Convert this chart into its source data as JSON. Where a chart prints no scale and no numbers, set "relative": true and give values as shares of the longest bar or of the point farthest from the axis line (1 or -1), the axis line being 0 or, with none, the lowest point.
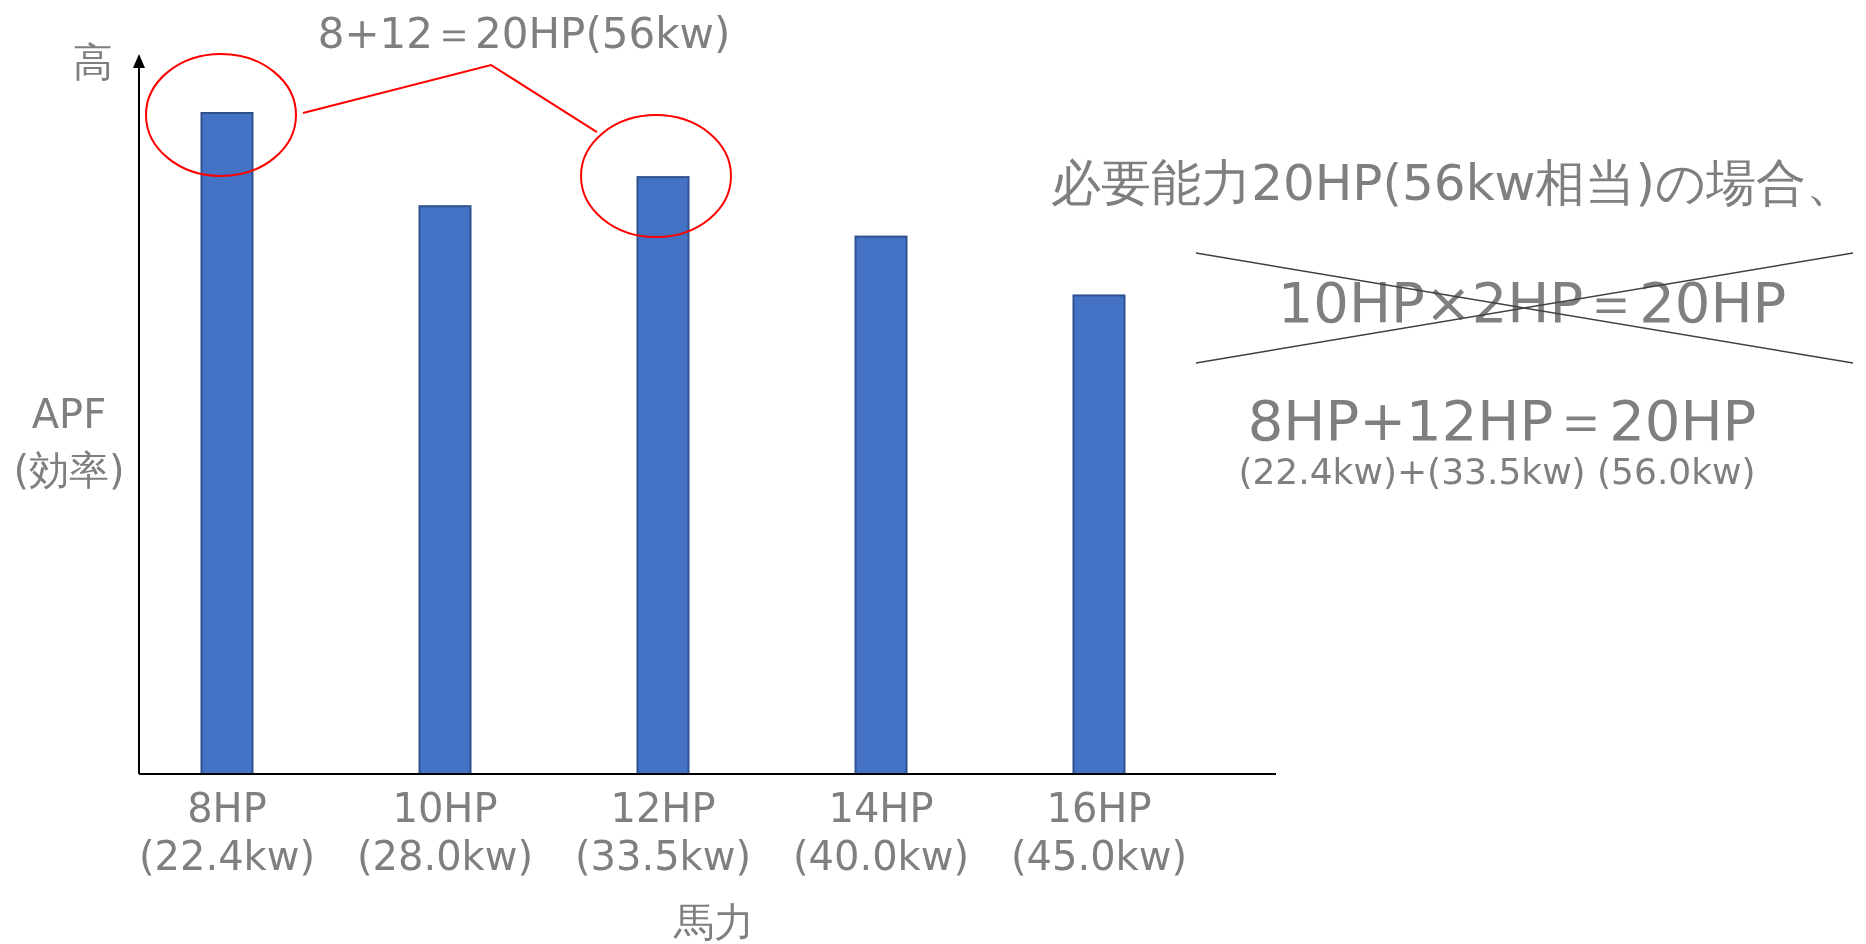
{
  "chart_data": {
    "type": "bar",
    "relative": true,
    "color": "#4472c4",
    "categories": [
      "8HP\n(22.4kw)",
      "10HP\n(28.0kw)",
      "12HP\n(33.5kw)",
      "14HP\n(40.0kw)",
      "16HP\n(45.0kw)"
    ],
    "values": [
      1,
      0.859,
      0.903,
      0.813,
      0.724
    ],
    "xlabel": "馬力",
    "ylabel": "APF\n(効率)",
    "annotations": [
      "高",
      {
        "text": "8+12＝20HP(56kw)",
        "x": "12HP\n(33.5kw)",
        "y": 0.903
      },
      "必要能力20HP(56kw相当)の場合、",
      "10HP×2HP＝20HP",
      "8HP+12HP＝20HP",
      "(22.4kw)+(33.5kw)  (56.0kw)"
    ]
  }
}
